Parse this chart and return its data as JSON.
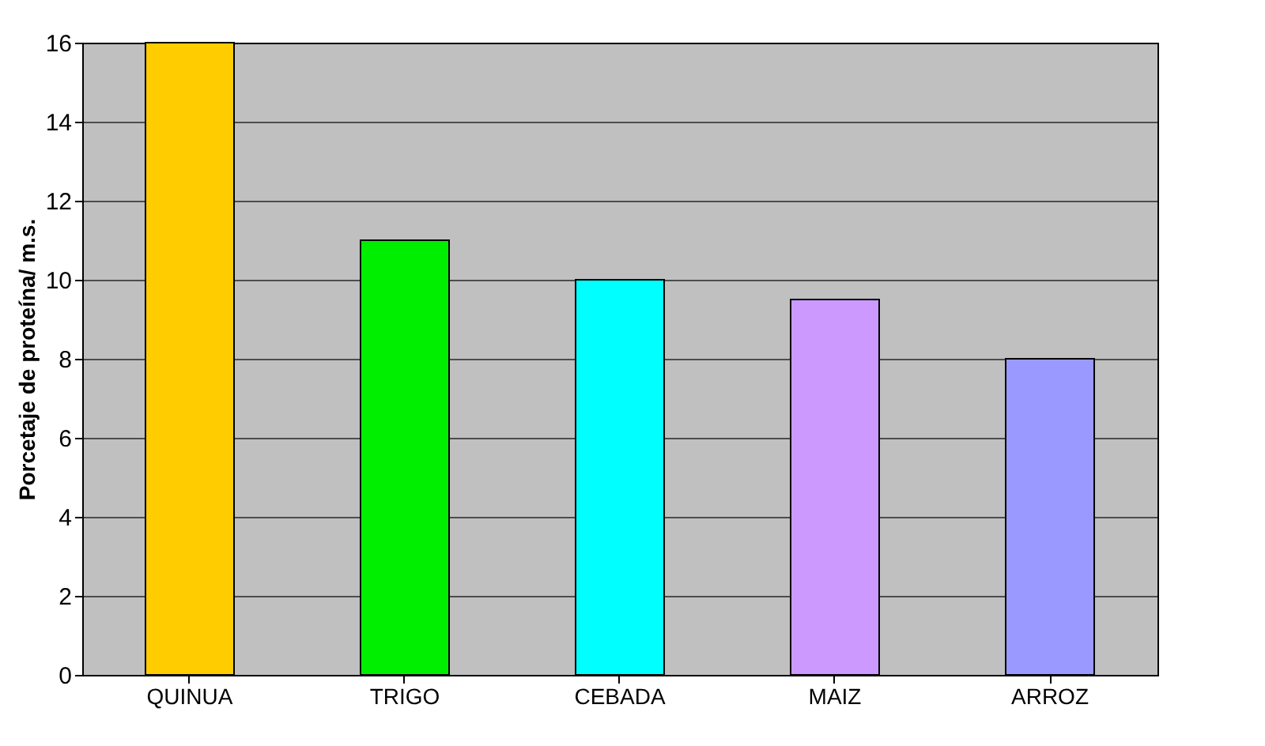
{
  "chart_data": {
    "type": "bar",
    "ylabel": "Porcetaje de proteína/ m.s.",
    "categories": [
      "QUINUA",
      "TRIGO",
      "CEBADA",
      "MAIZ",
      "ARROZ"
    ],
    "values": [
      16,
      11,
      10,
      9.5,
      8
    ],
    "colors": [
      "#ffcc00",
      "#00ee00",
      "#00ffff",
      "#cc99ff",
      "#9999ff"
    ],
    "ylim": [
      0,
      16
    ],
    "yticks": [
      0,
      2,
      4,
      6,
      8,
      10,
      12,
      14,
      16
    ],
    "grid": "y"
  }
}
